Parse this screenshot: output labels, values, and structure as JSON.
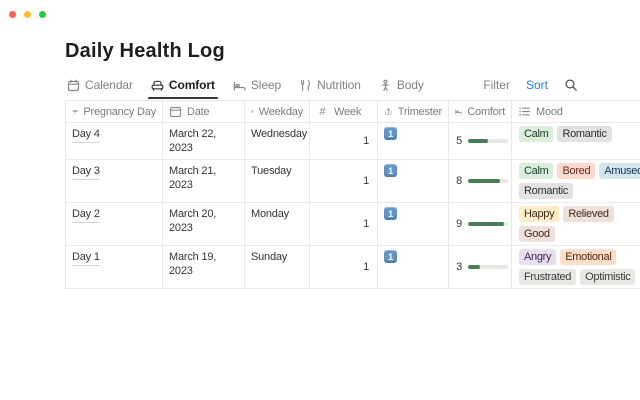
{
  "window": {
    "traffic_lights": [
      "close",
      "minimize",
      "zoom"
    ]
  },
  "page": {
    "title": "Daily Health Log"
  },
  "tabs": [
    {
      "label": "Calendar",
      "icon": "calendar-icon",
      "active": false
    },
    {
      "label": "Comfort",
      "icon": "armchair-icon",
      "active": true
    },
    {
      "label": "Sleep",
      "icon": "bed-icon",
      "active": false
    },
    {
      "label": "Nutrition",
      "icon": "fork-knife-icon",
      "active": false
    },
    {
      "label": "Body",
      "icon": "person-icon",
      "active": false
    }
  ],
  "toolbar": {
    "filter_label": "Filter",
    "sort_label": "Sort",
    "search_icon": "magnifier"
  },
  "table": {
    "comfort_max": 10,
    "columns": [
      {
        "label": "Pregnancy Day",
        "icon": "title-icon"
      },
      {
        "label": "Date",
        "icon": "calendar-icon"
      },
      {
        "label": "Weekday",
        "icon": "calendar-icon"
      },
      {
        "label": "Week",
        "icon": "hash-icon"
      },
      {
        "label": "Trimester",
        "icon": "rollup-icon"
      },
      {
        "label": "Comfort",
        "icon": "bed-icon"
      },
      {
        "label": "Mood",
        "icon": "list-icon"
      }
    ],
    "rows": [
      {
        "day": "Day 4",
        "date": "March 22, 2023",
        "weekday": "Wednesday",
        "week": "1",
        "trimester": "1",
        "comfort": 5,
        "mood_lines": [
          [
            {
              "label": "Calm",
              "color": "green"
            },
            {
              "label": "Romantic",
              "color": "gray"
            }
          ]
        ]
      },
      {
        "day": "Day 3",
        "date": "March 21, 2023",
        "weekday": "Tuesday",
        "week": "1",
        "trimester": "1",
        "comfort": 8,
        "mood_lines": [
          [
            {
              "label": "Calm",
              "color": "green"
            },
            {
              "label": "Bored",
              "color": "red"
            },
            {
              "label": "Amused",
              "color": "blue"
            }
          ],
          [
            {
              "label": "Romantic",
              "color": "gray"
            }
          ]
        ]
      },
      {
        "day": "Day 2",
        "date": "March 20, 2023",
        "weekday": "Monday",
        "week": "1",
        "trimester": "1",
        "comfort": 9,
        "mood_lines": [
          [
            {
              "label": "Happy",
              "color": "yellow"
            },
            {
              "label": "Relieved",
              "color": "brown"
            }
          ],
          [
            {
              "label": "Good",
              "color": "brown"
            }
          ]
        ]
      },
      {
        "day": "Day 1",
        "date": "March 19, 2023",
        "weekday": "Sunday",
        "week": "1",
        "trimester": "1",
        "comfort": 3,
        "mood_lines": [
          [
            {
              "label": "Angry",
              "color": "purple"
            },
            {
              "label": "Emotional",
              "color": "orange"
            }
          ],
          [
            {
              "label": "Frustrated",
              "color": "default"
            },
            {
              "label": "Optimistic",
              "color": "default"
            }
          ]
        ]
      }
    ]
  },
  "palette": {
    "green": {
      "bg": "#dbeddb",
      "text": "#1c3829"
    },
    "gray": {
      "bg": "#e3e2e0",
      "text": "#32302c"
    },
    "default": {
      "bg": "#e8e7e4",
      "text": "#3d3b37"
    },
    "red": {
      "bg": "#fad9d0",
      "text": "#6c2b23"
    },
    "blue": {
      "bg": "#d3e5ef",
      "text": "#183347"
    },
    "yellow": {
      "bg": "#fdecc8",
      "text": "#402c1b"
    },
    "brown": {
      "bg": "#eee0da",
      "text": "#442a1e"
    },
    "purple": {
      "bg": "#e8deee",
      "text": "#412454"
    },
    "orange": {
      "bg": "#fadec9",
      "text": "#49290e"
    }
  },
  "colors": {
    "accent": "#2383e2",
    "progress_fill": "#497d57",
    "progress_track": "#e7e6e3",
    "row_border": "#e9e9e7",
    "header_text": "#7d7b77",
    "body_text": "#37352f",
    "trimester_chip_bg": "#6096c8",
    "traffic_red": "#ff5f57",
    "traffic_yellow": "#febc2e",
    "traffic_green": "#28c840"
  }
}
